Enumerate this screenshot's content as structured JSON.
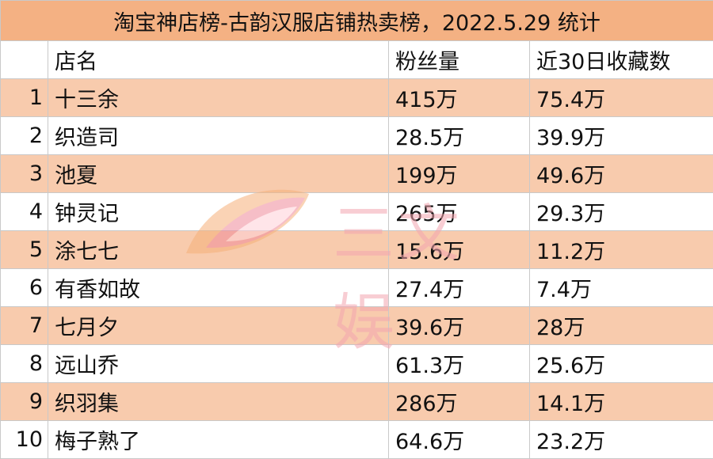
{
  "title": "淘宝神店榜-古韵汉服店铺热卖榜，2022.5.29 统计",
  "headers": {
    "index": "",
    "name": "店名",
    "fans": "粉丝量",
    "fav": "近30日收藏数"
  },
  "rows": [
    {
      "index": "1",
      "name": "十三余",
      "fans": "415万",
      "fav": "75.4万"
    },
    {
      "index": "2",
      "name": "织造司",
      "fans": "28.5万",
      "fav": "39.9万"
    },
    {
      "index": "3",
      "name": "池夏",
      "fans": "199万",
      "fav": "49.6万"
    },
    {
      "index": "4",
      "name": "钟灵记",
      "fans": "265万",
      "fav": "29.3万"
    },
    {
      "index": "5",
      "name": "涂七七",
      "fans": "15.6万",
      "fav": "11.2万"
    },
    {
      "index": "6",
      "name": "有香如故",
      "fans": "27.4万",
      "fav": "7.4万"
    },
    {
      "index": "7",
      "name": "七月夕",
      "fans": "39.6万",
      "fav": "28万"
    },
    {
      "index": "8",
      "name": "远山乔",
      "fans": "61.3万",
      "fav": "25.6万"
    },
    {
      "index": "9",
      "name": "织羽集",
      "fans": "286万",
      "fav": "14.1万"
    },
    {
      "index": "10",
      "name": "梅子熟了",
      "fans": "64.6万",
      "fav": "23.2万"
    }
  ],
  "watermark": {
    "text": "三文娱",
    "icon": "leaf-logo-icon"
  },
  "colors": {
    "title_bg": "#f4b183",
    "shaded_row": "#f8cbad",
    "plain_row": "#ffffff"
  }
}
